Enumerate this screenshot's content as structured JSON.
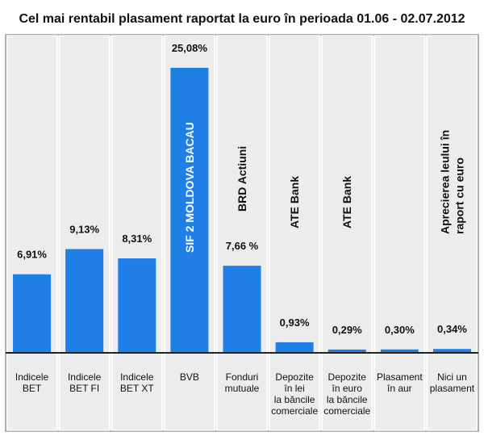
{
  "chart_data": {
    "type": "bar",
    "title": "Cel mai rentabil plasament raportat la euro în perioada 01.06 - 02.07.2012",
    "xlabel": "",
    "ylabel": "",
    "ylim": [
      0,
      26
    ],
    "grid": false,
    "legend": "none",
    "colors": {
      "bar": "#1f7fe6",
      "background": "#ececec",
      "frame": "#666666",
      "baseline": "#222222"
    },
    "categories": [
      [
        "Indicele",
        "BET"
      ],
      [
        "Indicele",
        "BET FI"
      ],
      [
        "Indicele",
        "BET XT"
      ],
      [
        "BVB"
      ],
      [
        "Fonduri",
        "mutuale"
      ],
      [
        "Depozite",
        "în lei",
        "la băncile",
        "comerciale"
      ],
      [
        "Depozite",
        "în euro",
        "la băncile",
        "comerciale"
      ],
      [
        "Plasament",
        "în aur"
      ],
      [
        "Nici un",
        "plasament"
      ]
    ],
    "values": [
      6.91,
      9.13,
      8.31,
      25.08,
      7.66,
      0.93,
      0.29,
      0.3,
      0.34
    ],
    "value_labels": [
      "6,91%",
      "9,13%",
      "8,31%",
      "25,08%",
      "7,66 %",
      "0,93%",
      "0,29%",
      "0,30%",
      "0,34%"
    ],
    "bar_annotations": [
      [],
      [],
      [],
      [
        "SIF 2 MOLDOVA BACAU"
      ],
      [
        "BRD Actiuni"
      ],
      [
        "ATE Bank"
      ],
      [
        "ATE Bank"
      ],
      [],
      [
        "Aprecierea leului în",
        "raport cu euro"
      ]
    ]
  }
}
